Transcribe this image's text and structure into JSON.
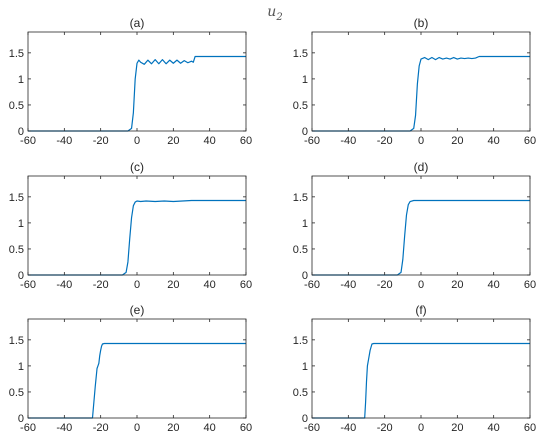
{
  "figure": {
    "supertitle": "u2",
    "supertitle_main": "u",
    "supertitle_sub": "2"
  },
  "colors": {
    "line": "#0072bd",
    "axes": "#262626",
    "background": "#ffffff"
  },
  "chart_data": [
    {
      "type": "line",
      "title": "(a)",
      "xlabel": "",
      "ylabel": "",
      "xlim": [
        -60,
        60
      ],
      "ylim": [
        0,
        1.9
      ],
      "xticks": [
        -60,
        -40,
        -20,
        0,
        20,
        40,
        60
      ],
      "yticks": [
        0,
        0.5,
        1,
        1.5
      ],
      "xtick_labels": [
        "-60",
        "-40",
        "-20",
        "0",
        "20",
        "40",
        "60"
      ],
      "ytick_labels": [
        "0",
        "0.5",
        "1",
        "1.5"
      ],
      "grid": false,
      "series": [
        {
          "x": [
            -60,
            -5,
            -3,
            -2,
            -1,
            0,
            1,
            2,
            4,
            6,
            8,
            10,
            12,
            14,
            16,
            18,
            20,
            22,
            24,
            26,
            28,
            30,
            31,
            32,
            40,
            50,
            60
          ],
          "y": [
            0,
            0,
            0.05,
            0.35,
            1.0,
            1.3,
            1.36,
            1.32,
            1.28,
            1.36,
            1.29,
            1.37,
            1.29,
            1.37,
            1.29,
            1.36,
            1.3,
            1.36,
            1.3,
            1.35,
            1.31,
            1.34,
            1.32,
            1.43,
            1.43,
            1.43,
            1.43
          ]
        }
      ]
    },
    {
      "type": "line",
      "title": "(b)",
      "xlabel": "",
      "ylabel": "",
      "xlim": [
        -60,
        60
      ],
      "ylim": [
        0,
        1.9
      ],
      "xticks": [
        -60,
        -40,
        -20,
        0,
        20,
        40,
        60
      ],
      "yticks": [
        0,
        0.5,
        1,
        1.5
      ],
      "xtick_labels": [
        "-60",
        "-40",
        "-20",
        "0",
        "20",
        "40",
        "60"
      ],
      "ytick_labels": [
        "0",
        "0.5",
        "1",
        "1.5"
      ],
      "grid": false,
      "series": [
        {
          "x": [
            -60,
            -6,
            -4,
            -3,
            -2,
            -1,
            0,
            2,
            4,
            6,
            8,
            10,
            12,
            14,
            16,
            18,
            20,
            22,
            24,
            26,
            28,
            30,
            32,
            40,
            50,
            60
          ],
          "y": [
            0,
            0,
            0.05,
            0.3,
            0.9,
            1.25,
            1.38,
            1.41,
            1.37,
            1.41,
            1.37,
            1.41,
            1.38,
            1.4,
            1.38,
            1.41,
            1.38,
            1.4,
            1.39,
            1.4,
            1.39,
            1.4,
            1.43,
            1.43,
            1.43,
            1.43
          ]
        }
      ]
    },
    {
      "type": "line",
      "title": "(c)",
      "xlabel": "",
      "ylabel": "",
      "xlim": [
        -60,
        60
      ],
      "ylim": [
        0,
        1.9
      ],
      "xticks": [
        -60,
        -40,
        -20,
        0,
        20,
        40,
        60
      ],
      "yticks": [
        0,
        0.5,
        1,
        1.5
      ],
      "xtick_labels": [
        "-60",
        "-40",
        "-20",
        "0",
        "20",
        "40",
        "60"
      ],
      "ytick_labels": [
        "0",
        "0.5",
        "1",
        "1.5"
      ],
      "grid": false,
      "series": [
        {
          "x": [
            -60,
            -8,
            -6,
            -5,
            -4,
            -3,
            -2,
            -1,
            0,
            2,
            5,
            10,
            15,
            20,
            25,
            30,
            40,
            50,
            60
          ],
          "y": [
            0,
            0,
            0.05,
            0.25,
            0.7,
            1.1,
            1.33,
            1.4,
            1.42,
            1.41,
            1.42,
            1.41,
            1.42,
            1.41,
            1.42,
            1.43,
            1.43,
            1.43,
            1.43
          ]
        }
      ]
    },
    {
      "type": "line",
      "title": "(d)",
      "xlabel": "",
      "ylabel": "",
      "xlim": [
        -60,
        60
      ],
      "ylim": [
        0,
        1.9
      ],
      "xticks": [
        -60,
        -40,
        -20,
        0,
        20,
        40,
        60
      ],
      "yticks": [
        0,
        0.5,
        1,
        1.5
      ],
      "xtick_labels": [
        "-60",
        "-40",
        "-20",
        "0",
        "20",
        "40",
        "60"
      ],
      "ytick_labels": [
        "0",
        "0.5",
        "1",
        "1.5"
      ],
      "grid": false,
      "series": [
        {
          "x": [
            -60,
            -13,
            -11,
            -10,
            -9,
            -8,
            -7,
            -6,
            -4,
            0,
            10,
            20,
            30,
            40,
            50,
            60
          ],
          "y": [
            0,
            0,
            0.05,
            0.3,
            0.75,
            1.15,
            1.35,
            1.41,
            1.43,
            1.43,
            1.43,
            1.43,
            1.43,
            1.43,
            1.43,
            1.43
          ]
        }
      ]
    },
    {
      "type": "line",
      "title": "(e)",
      "xlabel": "",
      "ylabel": "",
      "xlim": [
        -60,
        60
      ],
      "ylim": [
        0,
        1.9
      ],
      "xticks": [
        -60,
        -40,
        -20,
        0,
        20,
        40,
        60
      ],
      "yticks": [
        0,
        0.5,
        1,
        1.5
      ],
      "xtick_labels": [
        "-60",
        "-40",
        "-20",
        "0",
        "20",
        "40",
        "60"
      ],
      "ytick_labels": [
        "0",
        "0.5",
        "1",
        "1.5"
      ],
      "grid": false,
      "series": [
        {
          "x": [
            -60,
            -24.5,
            -24,
            -23,
            -22,
            -21.5,
            -21,
            -20.5,
            -20,
            -19.5,
            -19,
            -18,
            -16,
            0,
            20,
            40,
            60
          ],
          "y": [
            0,
            0,
            0.2,
            0.6,
            0.95,
            1.0,
            1.05,
            1.2,
            1.3,
            1.38,
            1.42,
            1.43,
            1.43,
            1.43,
            1.43,
            1.43,
            1.43
          ]
        }
      ]
    },
    {
      "type": "line",
      "title": "(f)",
      "xlabel": "",
      "ylabel": "",
      "xlim": [
        -60,
        60
      ],
      "ylim": [
        0,
        1.9
      ],
      "xticks": [
        -60,
        -40,
        -20,
        0,
        20,
        40,
        60
      ],
      "yticks": [
        0,
        0.5,
        1,
        1.5
      ],
      "xtick_labels": [
        "-60",
        "-40",
        "-20",
        "0",
        "20",
        "40",
        "60"
      ],
      "ytick_labels": [
        "0",
        "0.5",
        "1",
        "1.5"
      ],
      "grid": false,
      "series": [
        {
          "x": [
            -60,
            -31,
            -30.5,
            -30,
            -29.5,
            -29,
            -28,
            -27,
            -26,
            -25,
            -20,
            0,
            20,
            40,
            60
          ],
          "y": [
            0,
            0,
            0.3,
            0.7,
            1.0,
            1.1,
            1.3,
            1.42,
            1.43,
            1.43,
            1.43,
            1.43,
            1.43,
            1.43,
            1.43
          ]
        }
      ]
    }
  ]
}
